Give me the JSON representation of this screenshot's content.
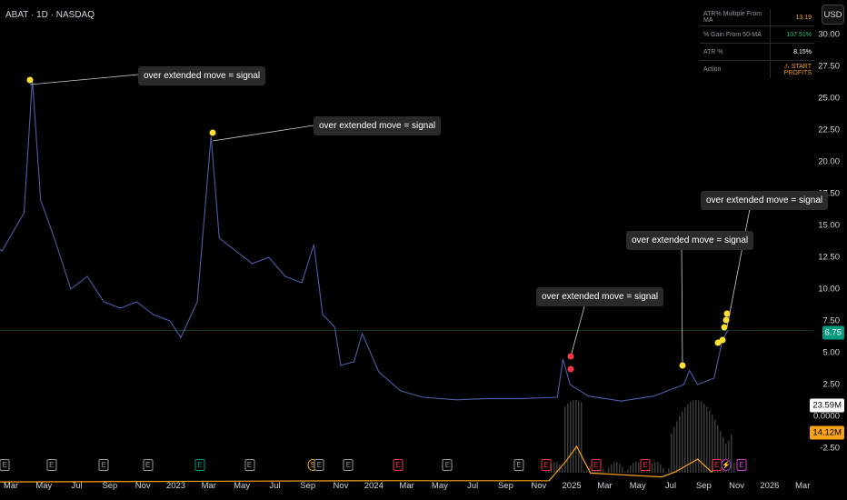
{
  "header": {
    "title": "ABAT · 1D · NASDAQ",
    "currency": "USD"
  },
  "table": [
    {
      "label": "ATR% Multiple From MA",
      "value": "13.19",
      "color": "#f0a020"
    },
    {
      "label": "% Gain From 50-MA",
      "value": "107.51%",
      "color": "#22c07a"
    },
    {
      "label": "ATR %",
      "value": "8.15%",
      "color": "#ffffff"
    },
    {
      "label": "Action",
      "value": "⚠ START PROFITS",
      "color": "#f0a020"
    }
  ],
  "price_axis": [
    "30.00",
    "27.50",
    "25.00",
    "22.50",
    "20.00",
    "17.50",
    "15.00",
    "12.50",
    "10.00",
    "7.50",
    "5.00",
    "2.50",
    "0.0000",
    "-2.50"
  ],
  "tags": {
    "last_price": "6.75",
    "volume": "23.59M",
    "indicator": "14.12M"
  },
  "colors": {
    "price_tag": "#089981",
    "indicator": "#f7a21b",
    "signal": "#ffe033",
    "sell_signal": "#f23645"
  },
  "annotations": [
    "over extended move = signal",
    "over extended move = signal",
    "over extended move = signal",
    "over extended move = signal",
    "over extended move = signal"
  ],
  "time_axis": [
    "Mar",
    "May",
    "Jul",
    "Sep",
    "Nov",
    "2023",
    "Mar",
    "May",
    "Jul",
    "Sep",
    "Nov",
    "2024",
    "Mar",
    "May",
    "Jul",
    "Sep",
    "Nov",
    "2025",
    "Mar",
    "May",
    "Jul",
    "Sep",
    "Nov",
    "2026",
    "Mar"
  ],
  "events": [
    {
      "label": "E",
      "date": "2022-02-20",
      "type": "earnings"
    },
    {
      "label": "E",
      "date": "2022-05-15",
      "type": "earnings"
    },
    {
      "label": "E",
      "date": "2022-08-20",
      "type": "earnings"
    },
    {
      "label": "E",
      "date": "2022-11-10",
      "type": "earnings"
    },
    {
      "label": "E",
      "date": "2023-02-15",
      "type": "earnings-beat"
    },
    {
      "label": "E",
      "date": "2023-05-15",
      "type": "earnings"
    },
    {
      "label": "S",
      "date": "2023-09-10",
      "type": "split"
    },
    {
      "label": "E",
      "date": "2023-09-22",
      "type": "earnings"
    },
    {
      "label": "E",
      "date": "2023-11-15",
      "type": "earnings"
    },
    {
      "label": "E",
      "date": "2024-02-15",
      "type": "earnings-miss"
    },
    {
      "label": "E",
      "date": "2024-05-15",
      "type": "earnings"
    },
    {
      "label": "E",
      "date": "2024-09-25",
      "type": "earnings"
    },
    {
      "label": "E",
      "date": "2024-11-15",
      "type": "earnings-miss"
    },
    {
      "label": "E",
      "date": "2025-02-15",
      "type": "earnings-miss"
    },
    {
      "label": "E",
      "date": "2025-05-15",
      "type": "earnings-miss"
    },
    {
      "label": "E",
      "date": "2025-09-25",
      "type": "earnings-miss"
    },
    {
      "label": "⚡",
      "date": "2025-10-12",
      "type": "dividend"
    },
    {
      "label": "E",
      "date": "2025-11-10",
      "type": "upcoming"
    }
  ],
  "chart_data": {
    "type": "line",
    "price": [
      [
        "2022-01-15",
        14
      ],
      [
        "2022-02-15",
        13
      ],
      [
        "2022-03-25",
        16
      ],
      [
        "2022-04-10",
        26.5
      ],
      [
        "2022-04-25",
        17
      ],
      [
        "2022-05-20",
        14
      ],
      [
        "2022-06-20",
        10
      ],
      [
        "2022-07-20",
        11
      ],
      [
        "2022-08-20",
        9
      ],
      [
        "2022-09-20",
        8.5
      ],
      [
        "2022-10-20",
        9
      ],
      [
        "2022-11-20",
        8
      ],
      [
        "2022-12-20",
        7.5
      ],
      [
        "2023-01-10",
        6.2
      ],
      [
        "2023-02-10",
        9
      ],
      [
        "2023-03-05",
        22
      ],
      [
        "2023-03-20",
        14
      ],
      [
        "2023-04-20",
        13
      ],
      [
        "2023-05-20",
        12
      ],
      [
        "2023-06-20",
        12.5
      ],
      [
        "2023-07-20",
        11
      ],
      [
        "2023-08-20",
        10.5
      ],
      [
        "2023-09-12",
        13.5
      ],
      [
        "2023-09-28",
        8
      ],
      [
        "2023-10-20",
        7
      ],
      [
        "2023-11-01",
        4
      ],
      [
        "2023-11-25",
        4.3
      ],
      [
        "2023-12-10",
        6.5
      ],
      [
        "2024-01-10",
        3.5
      ],
      [
        "2024-02-20",
        2
      ],
      [
        "2024-04-01",
        1.5
      ],
      [
        "2024-06-01",
        1.3
      ],
      [
        "2024-08-01",
        1.4
      ],
      [
        "2024-10-01",
        1.4
      ],
      [
        "2024-12-05",
        1.5
      ],
      [
        "2024-12-15",
        4.5
      ],
      [
        "2024-12-28",
        2.5
      ],
      [
        "2025-02-01",
        1.6
      ],
      [
        "2025-04-01",
        1.2
      ],
      [
        "2025-06-01",
        1.6
      ],
      [
        "2025-07-25",
        2.5
      ],
      [
        "2025-08-05",
        3.6
      ],
      [
        "2025-08-20",
        2.5
      ],
      [
        "2025-09-20",
        3
      ],
      [
        "2025-10-05",
        6
      ],
      [
        "2025-10-15",
        6.75
      ]
    ],
    "indicator": [
      [
        "2022-01-15",
        -2.3
      ],
      [
        "2024-01-01",
        -2.2
      ],
      [
        "2024-11-20",
        -2.2
      ],
      [
        "2024-12-20",
        -0.7
      ],
      [
        "2025-01-10",
        0.5
      ],
      [
        "2025-02-05",
        -1.6
      ],
      [
        "2025-06-15",
        -1.9
      ],
      [
        "2025-07-10",
        -1.5
      ],
      [
        "2025-08-20",
        -0.5
      ],
      [
        "2025-09-15",
        -1.5
      ],
      [
        "2025-10-15",
        -0.6
      ]
    ],
    "last_price": 6.75
  }
}
